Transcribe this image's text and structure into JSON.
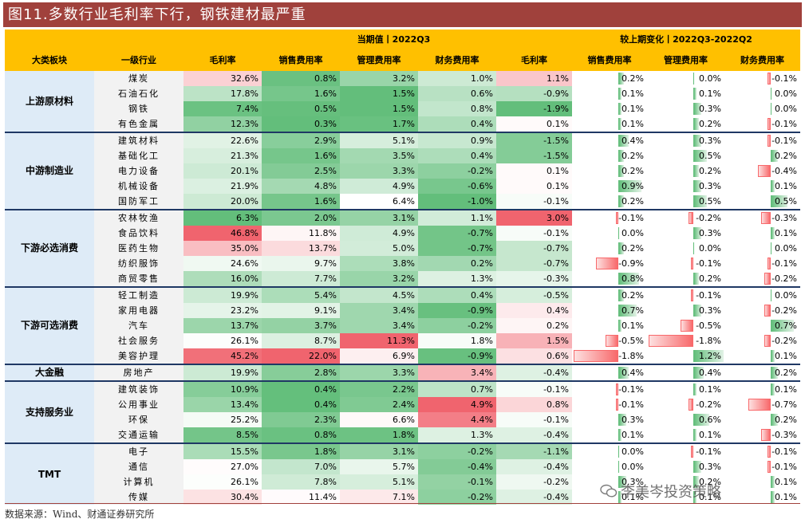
{
  "title": "图11.多数行业毛利率下行，钢铁建材最严重",
  "header": {
    "current_group": "当期值丨2022Q3",
    "change_group": "较上期变化丨2022Q3-2022Q2",
    "columns": [
      "大类板块",
      "一级行业",
      "毛利率",
      "销售费用率",
      "管理费用率",
      "财务费用率",
      "毛利率",
      "销售费用率",
      "管理费用率",
      "财务费用率"
    ]
  },
  "sectors": [
    {
      "name": "上游原材料",
      "rows": [
        {
          "ind": "煤炭",
          "gm": 32.6,
          "se": 0.8,
          "ad": 3.2,
          "fi": 1.0,
          "dgm": 1.1,
          "dse": 0.2,
          "dad": 0.0,
          "dfi": -0.1
        },
        {
          "ind": "石油石化",
          "gm": 17.8,
          "se": 1.6,
          "ad": 1.5,
          "fi": 0.6,
          "dgm": -0.9,
          "dse": 0.1,
          "dad": 0.1,
          "dfi": 0.0
        },
        {
          "ind": "钢铁",
          "gm": 7.4,
          "se": 0.5,
          "ad": 1.5,
          "fi": 0.8,
          "dgm": -1.9,
          "dse": 0.1,
          "dad": 0.3,
          "dfi": 0.0
        },
        {
          "ind": "有色金属",
          "gm": 12.3,
          "se": 0.3,
          "ad": 1.7,
          "fi": 0.4,
          "dgm": 0.1,
          "dse": 0.1,
          "dad": 0.2,
          "dfi": -0.1
        }
      ]
    },
    {
      "name": "中游制造业",
      "rows": [
        {
          "ind": "建筑材料",
          "gm": 22.6,
          "se": 2.9,
          "ad": 5.1,
          "fi": 0.9,
          "dgm": -1.5,
          "dse": 0.4,
          "dad": 0.3,
          "dfi": -0.1
        },
        {
          "ind": "基础化工",
          "gm": 21.3,
          "se": 1.6,
          "ad": 3.5,
          "fi": 0.4,
          "dgm": -1.5,
          "dse": 0.2,
          "dad": 0.5,
          "dfi": 0.2
        },
        {
          "ind": "电力设备",
          "gm": 20.1,
          "se": 2.5,
          "ad": 3.3,
          "fi": -0.2,
          "dgm": 0.1,
          "dse": 0.2,
          "dad": 0.2,
          "dfi": -0.4
        },
        {
          "ind": "机械设备",
          "gm": 21.9,
          "se": 4.8,
          "ad": 4.9,
          "fi": -0.6,
          "dgm": 0.1,
          "dse": 0.9,
          "dad": 0.3,
          "dfi": 0.1
        },
        {
          "ind": "国防军工",
          "gm": 20.0,
          "se": 1.6,
          "ad": 6.4,
          "fi": -1.0,
          "dgm": -0.1,
          "dse": 0.2,
          "dad": 0.5,
          "dfi": 0.5
        }
      ]
    },
    {
      "name": "下游必选消费",
      "rows": [
        {
          "ind": "农林牧渔",
          "gm": 6.3,
          "se": 2.0,
          "ad": 3.1,
          "fi": 1.1,
          "dgm": 3.0,
          "dse": -0.1,
          "dad": -0.2,
          "dfi": -0.3
        },
        {
          "ind": "食品饮料",
          "gm": 46.8,
          "se": 11.8,
          "ad": 4.9,
          "fi": -0.7,
          "dgm": -0.1,
          "dse": 0.0,
          "dad": 0.3,
          "dfi": 0.1
        },
        {
          "ind": "医药生物",
          "gm": 35.0,
          "se": 13.7,
          "ad": 5.0,
          "fi": -0.7,
          "dgm": -0.7,
          "dse": 0.2,
          "dad": 0.0,
          "dfi": 0.0
        },
        {
          "ind": "纺织服饰",
          "gm": 24.6,
          "se": 9.7,
          "ad": 3.8,
          "fi": 0.2,
          "dgm": -0.7,
          "dse": -0.9,
          "dad": -0.1,
          "dfi": -0.1
        },
        {
          "ind": "商贸零售",
          "gm": 16.0,
          "se": 7.7,
          "ad": 3.2,
          "fi": 1.3,
          "dgm": -0.3,
          "dse": 0.8,
          "dad": 0.2,
          "dfi": -0.2
        }
      ]
    },
    {
      "name": "下游可选消费",
      "rows": [
        {
          "ind": "轻工制造",
          "gm": 19.9,
          "se": 5.4,
          "ad": 4.5,
          "fi": 0.4,
          "dgm": -0.5,
          "dse": 0.2,
          "dad": -0.1,
          "dfi": 0.0
        },
        {
          "ind": "家用电器",
          "gm": 23.2,
          "se": 9.1,
          "ad": 3.4,
          "fi": -0.9,
          "dgm": 0.4,
          "dse": 0.7,
          "dad": 0.3,
          "dfi": -0.2
        },
        {
          "ind": "汽车",
          "gm": 13.7,
          "se": 3.7,
          "ad": 3.4,
          "fi": -0.2,
          "dgm": 0.2,
          "dse": 0.1,
          "dad": -0.5,
          "dfi": 0.7
        },
        {
          "ind": "社会服务",
          "gm": 26.1,
          "se": 8.7,
          "ad": 11.3,
          "fi": 1.8,
          "dgm": 1.5,
          "dse": -0.5,
          "dad": -1.8,
          "dfi": -0.2
        },
        {
          "ind": "美容护理",
          "gm": 45.2,
          "se": 22.0,
          "ad": 6.9,
          "fi": -0.9,
          "dgm": 0.6,
          "dse": -1.8,
          "dad": 1.2,
          "dfi": 0.1
        }
      ]
    },
    {
      "name": "大金融",
      "rows": [
        {
          "ind": "房地产",
          "gm": 19.9,
          "se": 2.8,
          "ad": 3.3,
          "fi": 3.4,
          "dgm": -0.4,
          "dse": 0.4,
          "dad": 0.4,
          "dfi": 0.2
        }
      ]
    },
    {
      "name": "支持服务业",
      "rows": [
        {
          "ind": "建筑装饰",
          "gm": 10.9,
          "se": 0.4,
          "ad": 2.2,
          "fi": 0.7,
          "dgm": -0.1,
          "dse": -0.1,
          "dad": 0.1,
          "dfi": 0.1
        },
        {
          "ind": "公用事业",
          "gm": 13.4,
          "se": 0.4,
          "ad": 2.4,
          "fi": 4.9,
          "dgm": 0.8,
          "dse": -0.1,
          "dad": -0.2,
          "dfi": -0.7
        },
        {
          "ind": "环保",
          "gm": 25.2,
          "se": 2.3,
          "ad": 6.6,
          "fi": 4.4,
          "dgm": -0.1,
          "dse": 0.3,
          "dad": 0.6,
          "dfi": 0.2
        },
        {
          "ind": "交通运输",
          "gm": 8.5,
          "se": 0.8,
          "ad": 1.8,
          "fi": 1.3,
          "dgm": -0.4,
          "dse": 0.1,
          "dad": 0.1,
          "dfi": -0.3
        }
      ]
    },
    {
      "name": "TMT",
      "rows": [
        {
          "ind": "电子",
          "gm": 15.5,
          "se": 1.8,
          "ad": 3.1,
          "fi": -0.2,
          "dgm": -1.1,
          "dse": 0.0,
          "dad": -0.1,
          "dfi": -0.1
        },
        {
          "ind": "通信",
          "gm": 27.0,
          "se": 7.0,
          "ad": 5.7,
          "fi": -0.4,
          "dgm": -0.4,
          "dse": 0.0,
          "dad": 0.3,
          "dfi": -0.1
        },
        {
          "ind": "计算机",
          "gm": 26.1,
          "se": 7.8,
          "ad": 5.1,
          "fi": -0.1,
          "dgm": -0.2,
          "dse": 0.3,
          "dad": 0.2,
          "dfi": 0.1
        },
        {
          "ind": "传媒",
          "gm": 30.4,
          "se": 11.4,
          "ad": 7.1,
          "fi": -0.2,
          "dgm": -0.4,
          "dse": 0.1,
          "dad": 0.1,
          "dfi": 0.1
        }
      ]
    }
  ],
  "source": "数据来源：Wind、财通证券研究所",
  "watermark": "李美岑投资策略"
}
